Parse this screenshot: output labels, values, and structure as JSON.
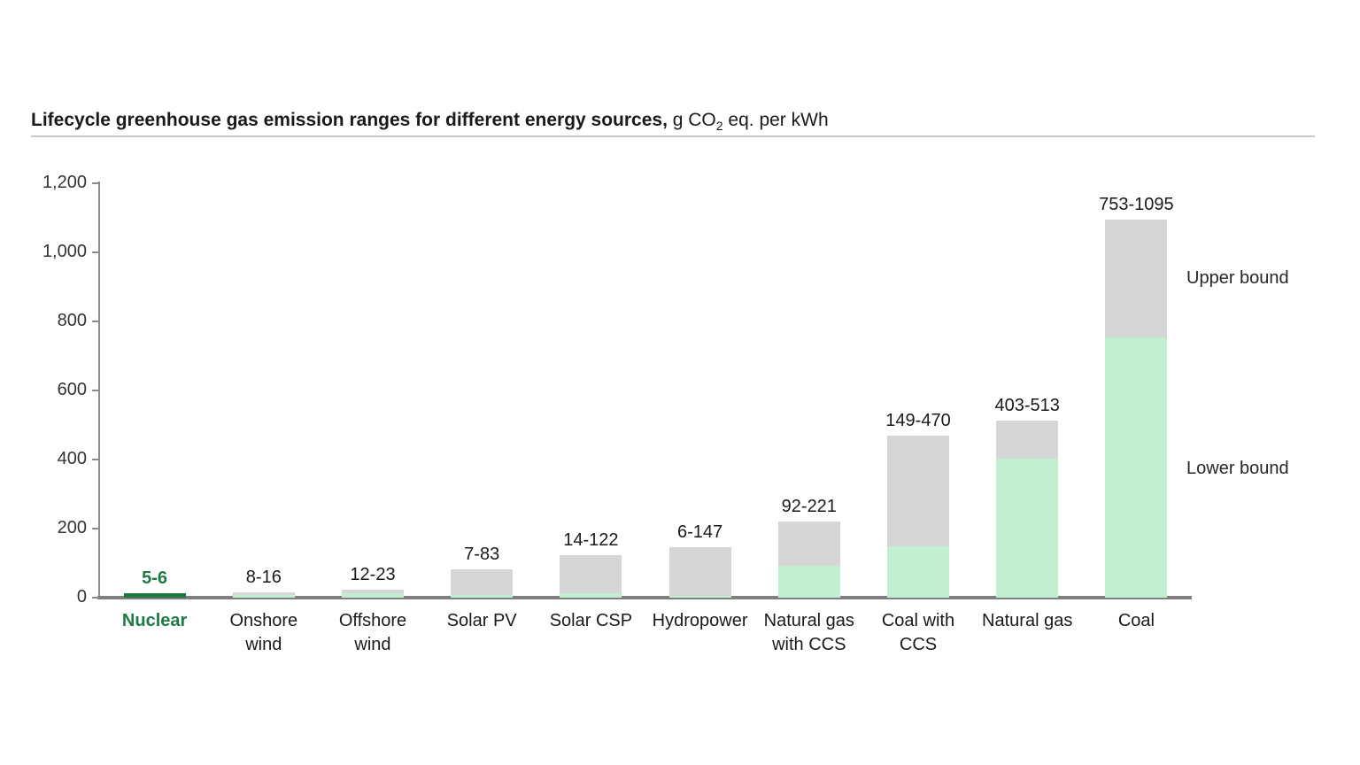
{
  "title": {
    "bold": "Lifecycle greenhouse gas emission ranges for different energy sources,",
    "unit_prefix": " g CO",
    "unit_sub": "2",
    "unit_suffix": " eq. per kWh"
  },
  "legend": {
    "upper_label": "Upper bound",
    "lower_label": "Lower bound"
  },
  "colors": {
    "lower_fill": "#c2efd2",
    "upper_fill": "#d6d6d6",
    "highlight_fill": "#1c7a41",
    "highlight_text": "#1e7b45",
    "axis": "#8c8c8c",
    "baseline": "#7f7f7f"
  },
  "chart_data": {
    "type": "bar",
    "stacked": true,
    "title": "Lifecycle greenhouse gas emission ranges for different energy sources, g CO2 eq. per kWh",
    "xlabel": "",
    "ylabel": "g CO2 eq. per kWh",
    "ylim": [
      0,
      1200
    ],
    "grid": false,
    "legend_position": "right",
    "yticks": [
      {
        "value": 0,
        "label": "0"
      },
      {
        "value": 200,
        "label": "200"
      },
      {
        "value": 400,
        "label": "400"
      },
      {
        "value": 600,
        "label": "600"
      },
      {
        "value": 800,
        "label": "800"
      },
      {
        "value": 1000,
        "label": "1,000"
      },
      {
        "value": 1200,
        "label": "1,200"
      }
    ],
    "categories": [
      "Nuclear",
      "Onshore wind",
      "Offshore wind",
      "Solar PV",
      "Solar CSP",
      "Hydropower",
      "Natural gas with CCS",
      "Coal with CCS",
      "Natural gas",
      "Coal"
    ],
    "series": [
      {
        "name": "Lower bound",
        "values": [
          5,
          8,
          12,
          7,
          14,
          6,
          92,
          149,
          403,
          753
        ]
      },
      {
        "name": "Upper bound",
        "values": [
          6,
          16,
          23,
          83,
          122,
          147,
          221,
          470,
          513,
          1095
        ]
      }
    ],
    "bars": [
      {
        "label_lines": [
          "Nuclear"
        ],
        "lower": 5,
        "upper": 6,
        "range_label": "5-6",
        "highlight": true
      },
      {
        "label_lines": [
          "Onshore",
          "wind"
        ],
        "lower": 8,
        "upper": 16,
        "range_label": "8-16",
        "highlight": false
      },
      {
        "label_lines": [
          "Offshore",
          "wind"
        ],
        "lower": 12,
        "upper": 23,
        "range_label": "12-23",
        "highlight": false
      },
      {
        "label_lines": [
          "Solar PV"
        ],
        "lower": 7,
        "upper": 83,
        "range_label": "7-83",
        "highlight": false
      },
      {
        "label_lines": [
          "Solar CSP"
        ],
        "lower": 14,
        "upper": 122,
        "range_label": "14-122",
        "highlight": false
      },
      {
        "label_lines": [
          "Hydropower"
        ],
        "lower": 6,
        "upper": 147,
        "range_label": "6-147",
        "highlight": false
      },
      {
        "label_lines": [
          "Natural gas",
          "with CCS"
        ],
        "lower": 92,
        "upper": 221,
        "range_label": "92-221",
        "highlight": false
      },
      {
        "label_lines": [
          "Coal with",
          "CCS"
        ],
        "lower": 149,
        "upper": 470,
        "range_label": "149-470",
        "highlight": false
      },
      {
        "label_lines": [
          "Natural gas"
        ],
        "lower": 403,
        "upper": 513,
        "range_label": "403-513",
        "highlight": false
      },
      {
        "label_lines": [
          "Coal"
        ],
        "lower": 753,
        "upper": 1095,
        "range_label": "753-1095",
        "highlight": false
      }
    ]
  }
}
